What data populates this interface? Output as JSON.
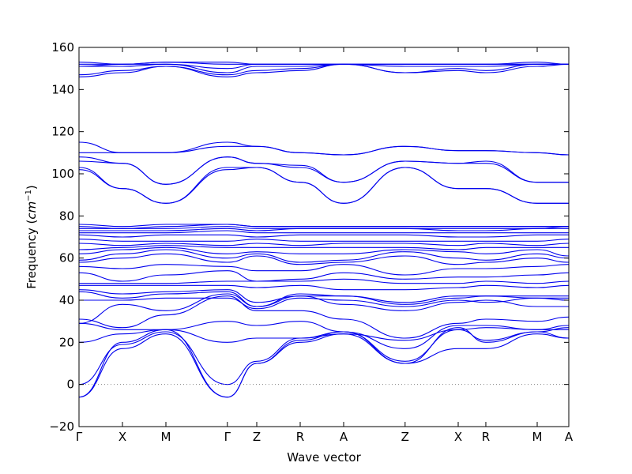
{
  "chart_data": {
    "type": "line",
    "xlabel": "Wave vector",
    "ylabel": "Frequency (cm⁻¹)",
    "ylabel_prefix": "Frequency (",
    "ylabel_unit": "cm",
    "ylabel_exp": "−1",
    "ylabel_suffix": ")",
    "ylim": [
      -20,
      160
    ],
    "yticks": [
      -20,
      0,
      20,
      40,
      60,
      80,
      100,
      120,
      140,
      160
    ],
    "ytick_labels": [
      "−20",
      "0",
      "20",
      "40",
      "60",
      "80",
      "100",
      "120",
      "140",
      "160"
    ],
    "xlim": [
      0,
      1
    ],
    "x_ticks": [
      {
        "label": "Γ",
        "x": 0.0
      },
      {
        "label": "X",
        "x": 0.0887
      },
      {
        "label": "M",
        "x": 0.1774
      },
      {
        "label": "Γ",
        "x": 0.3029
      },
      {
        "label": "Z",
        "x": 0.3629
      },
      {
        "label": "R",
        "x": 0.4516
      },
      {
        "label": "A",
        "x": 0.5403
      },
      {
        "label": "Z",
        "x": 0.6658
      },
      {
        "label": "X",
        "x": 0.7742
      },
      {
        "label": "R",
        "x": 0.8306
      },
      {
        "label": "M",
        "x": 0.9355
      },
      {
        "label": "A",
        "x": 1.0
      }
    ],
    "zero_line": {
      "y": 0,
      "style": "dotted",
      "color": "#888888"
    },
    "series_color": "#0000ee",
    "series": [
      {
        "values": [
          -6,
          20,
          26,
          -6,
          10,
          21,
          25,
          10,
          27,
          20,
          25,
          22
        ]
      },
      {
        "values": [
          -6,
          17,
          24,
          -6,
          10,
          20,
          24,
          10,
          17,
          17,
          24,
          22
        ]
      },
      {
        "values": [
          0,
          19,
          25,
          0,
          11,
          22,
          25,
          11,
          26,
          21,
          25,
          27
        ]
      },
      {
        "values": [
          20,
          24,
          26,
          20,
          22,
          22,
          24,
          21,
          26,
          27,
          26,
          28
        ]
      },
      {
        "values": [
          29,
          26,
          26,
          30,
          28,
          30,
          25,
          17,
          28,
          28,
          26,
          26
        ]
      },
      {
        "values": [
          31,
          27,
          33,
          42,
          35,
          35,
          31,
          22,
          29,
          31,
          30,
          32
        ]
      },
      {
        "values": [
          29,
          38,
          35,
          43,
          37,
          42,
          38,
          35,
          39,
          40,
          37,
          37
        ]
      },
      {
        "values": [
          40,
          40,
          41,
          41,
          36,
          41,
          40,
          37,
          40,
          39,
          41,
          40
        ]
      },
      {
        "values": [
          44,
          41,
          43,
          44,
          37,
          43,
          42,
          38,
          41,
          42,
          41,
          41
        ]
      },
      {
        "values": [
          45,
          43,
          44,
          45,
          39,
          42,
          42,
          39,
          42,
          42,
          42,
          42
        ]
      },
      {
        "values": [
          47,
          47,
          47,
          47,
          46,
          47,
          45,
          45,
          46,
          47,
          46,
          47
        ]
      },
      {
        "values": [
          48,
          48,
          48,
          49,
          49,
          49,
          50,
          48,
          48,
          49,
          48,
          49
        ]
      },
      {
        "values": [
          53,
          49,
          52,
          54,
          49,
          50,
          53,
          50,
          51,
          51,
          52,
          53
        ]
      },
      {
        "values": [
          56,
          55,
          57,
          56,
          54,
          54,
          57,
          52,
          55,
          55,
          56,
          57
        ]
      },
      {
        "values": [
          58,
          60,
          62,
          58,
          61,
          57,
          58,
          61,
          57,
          58,
          60,
          58
        ]
      },
      {
        "values": [
          59,
          62,
          64,
          60,
          62,
          58,
          59,
          63,
          60,
          59,
          62,
          60
        ]
      },
      {
        "values": [
          62,
          64,
          65,
          62,
          63,
          62,
          62,
          64,
          63,
          62,
          64,
          61
        ]
      },
      {
        "values": [
          64,
          65,
          66,
          65,
          65,
          65,
          65,
          65,
          64,
          65,
          65,
          65
        ]
      },
      {
        "values": [
          67,
          66,
          67,
          66,
          67,
          66,
          67,
          67,
          66,
          67,
          66,
          67
        ]
      },
      {
        "values": [
          69,
          68,
          68,
          68,
          69,
          68,
          68,
          68,
          68,
          68,
          68,
          69
        ]
      },
      {
        "values": [
          71,
          70,
          71,
          71,
          70,
          71,
          71,
          71,
          70,
          70,
          71,
          71
        ]
      },
      {
        "values": [
          72,
          72,
          72,
          73,
          72,
          72,
          72,
          72,
          72,
          72,
          72,
          72
        ]
      },
      {
        "values": [
          73,
          73,
          73,
          74,
          73,
          74,
          74,
          74,
          73,
          73,
          74,
          74
        ]
      },
      {
        "values": [
          74,
          74,
          74,
          75,
          74,
          74,
          74,
          74,
          74,
          74,
          74,
          75
        ]
      },
      {
        "values": [
          75,
          74,
          75,
          76,
          75,
          75,
          75,
          75,
          75,
          75,
          75,
          75
        ]
      },
      {
        "values": [
          76,
          75,
          76,
          76,
          75,
          75,
          75,
          75,
          75,
          75,
          75,
          75
        ]
      },
      {
        "values": [
          102,
          93,
          86,
          102,
          103,
          96,
          86,
          103,
          93,
          93,
          86,
          86
        ]
      },
      {
        "values": [
          103,
          93,
          86,
          103,
          103,
          96,
          86,
          103,
          93,
          93,
          86,
          86
        ]
      },
      {
        "values": [
          106,
          105,
          95,
          108,
          105,
          103,
          96,
          106,
          105,
          105,
          96,
          96
        ]
      },
      {
        "values": [
          108,
          105,
          95,
          108,
          105,
          104,
          96,
          106,
          105,
          106,
          96,
          96
        ]
      },
      {
        "values": [
          110,
          110,
          110,
          113,
          113,
          110,
          109,
          113,
          111,
          111,
          110,
          109
        ]
      },
      {
        "values": [
          115,
          110,
          110,
          115,
          113,
          110,
          109,
          113,
          111,
          111,
          110,
          109
        ]
      },
      {
        "values": [
          146,
          148,
          151,
          146,
          148,
          149,
          152,
          148,
          149,
          148,
          151,
          152
        ]
      },
      {
        "values": [
          147,
          149,
          151,
          147,
          149,
          150,
          152,
          148,
          150,
          149,
          152,
          152
        ]
      },
      {
        "values": [
          151,
          151,
          152,
          148,
          151,
          151,
          152,
          151,
          151,
          151,
          152,
          152
        ]
      },
      {
        "values": [
          151,
          152,
          152,
          150,
          152,
          152,
          152,
          152,
          152,
          152,
          152,
          152
        ]
      },
      {
        "values": [
          152,
          152,
          153,
          152,
          152,
          152,
          152,
          152,
          152,
          152,
          152,
          152
        ]
      },
      {
        "values": [
          153,
          152,
          153,
          153,
          152,
          152,
          152,
          152,
          152,
          152,
          153,
          152
        ]
      }
    ],
    "grid": false,
    "legend": "none"
  }
}
